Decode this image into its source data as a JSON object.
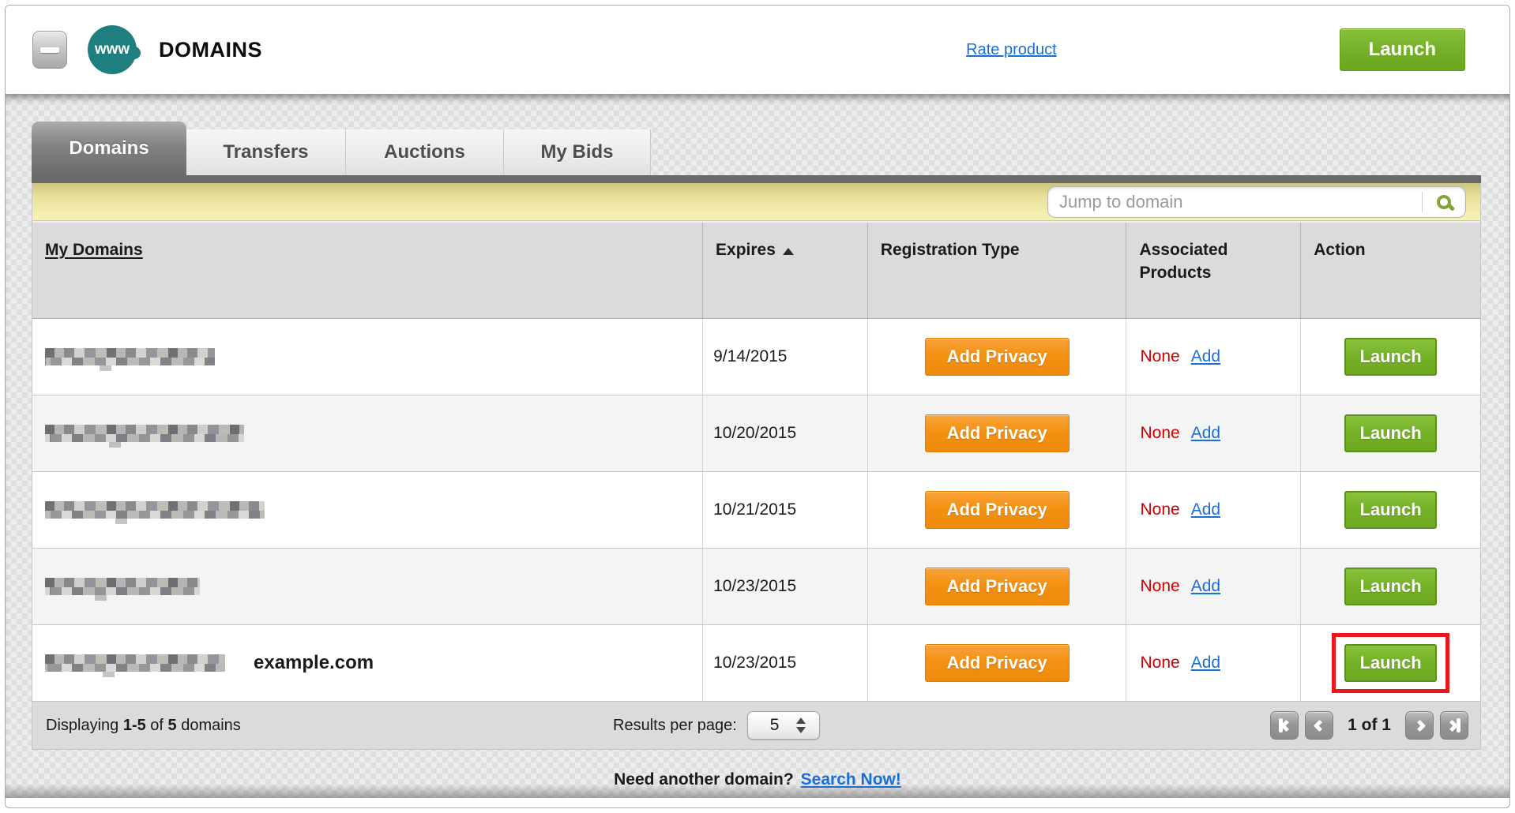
{
  "header": {
    "product_icon_text": "www",
    "title": "DOMAINS",
    "rate_product_link": "Rate product",
    "launch_button": "Launch"
  },
  "tabs": [
    {
      "label": "Domains",
      "active": true
    },
    {
      "label": "Transfers",
      "active": false
    },
    {
      "label": "Auctions",
      "active": false
    },
    {
      "label": "My Bids",
      "active": false
    }
  ],
  "toolbar": {
    "jump_placeholder": "Jump to domain",
    "search_icon": "green-magnifier-icon"
  },
  "table": {
    "columns": [
      {
        "label": "My Domains",
        "sortable_link": true
      },
      {
        "label": "Expires",
        "sorted": "asc",
        "sort_icon": "triangle-up-icon"
      },
      {
        "label": "Registration Type"
      },
      {
        "label": "Associated Products"
      },
      {
        "label": "Action"
      }
    ],
    "rows": [
      {
        "domain_obscured": true,
        "expires": "9/14/2015",
        "registration_button": "Add Privacy",
        "associated_value": "None",
        "associated_link": "Add",
        "action_button": "Launch",
        "highlighted": false
      },
      {
        "domain_obscured": true,
        "expires": "10/20/2015",
        "registration_button": "Add Privacy",
        "associated_value": "None",
        "associated_link": "Add",
        "action_button": "Launch",
        "highlighted": false
      },
      {
        "domain_obscured": true,
        "expires": "10/21/2015",
        "registration_button": "Add Privacy",
        "associated_value": "None",
        "associated_link": "Add",
        "action_button": "Launch",
        "highlighted": false
      },
      {
        "domain_obscured": true,
        "expires": "10/23/2015",
        "registration_button": "Add Privacy",
        "associated_value": "None",
        "associated_link": "Add",
        "action_button": "Launch",
        "highlighted": false
      },
      {
        "domain_obscured": true,
        "domain_label": "example.com",
        "expires": "10/23/2015",
        "registration_button": "Add Privacy",
        "associated_value": "None",
        "associated_link": "Add",
        "action_button": "Launch",
        "highlighted": true
      }
    ]
  },
  "footer": {
    "displaying_label": "Displaying ",
    "range": "1-5",
    "of_label": " of ",
    "total": "5",
    "domains_label": " domains",
    "results_per_page_label": "Results per page:",
    "results_per_page_value": "5",
    "page_status": "1 of 1"
  },
  "bottom": {
    "prompt": "Need another domain?",
    "search_link": "Search Now!"
  },
  "colors": {
    "launch_green": "#76B52B",
    "privacy_orange": "#F7941E",
    "none_red": "#CC0000",
    "link_blue": "#1A6FD4",
    "highlight_red": "#EA161D",
    "toolbar_yellow": "#EFE8A4",
    "product_icon_teal": "#1E7F7E",
    "active_tab_gray": "#6B6B6B"
  }
}
